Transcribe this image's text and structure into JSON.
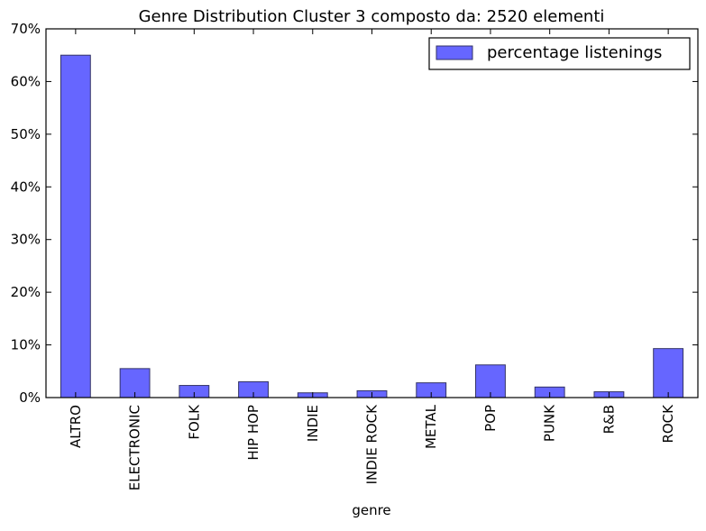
{
  "chart_data": {
    "type": "bar",
    "title": "Genre Distribution Cluster 3 composto da: 2520 elementi",
    "xlabel": "genre",
    "ylabel": "",
    "categories": [
      "ALTRO",
      "ELECTRONIC",
      "FOLK",
      "HIP HOP",
      "INDIE",
      "INDIE ROCK",
      "METAL",
      "POP",
      "PUNK",
      "R&B",
      "ROCK"
    ],
    "series": [
      {
        "name": "percentage listenings",
        "values": [
          65.0,
          5.5,
          2.3,
          3.0,
          0.9,
          1.3,
          2.8,
          6.2,
          2.0,
          1.1,
          9.3
        ],
        "color": "#6666ff"
      }
    ],
    "ylim": [
      0,
      70
    ],
    "yticks": [
      0,
      10,
      20,
      30,
      40,
      50,
      60,
      70
    ],
    "ytick_format": "percent",
    "grid": false,
    "legend_position": "top-right",
    "bar_edge_color": "#333366"
  }
}
